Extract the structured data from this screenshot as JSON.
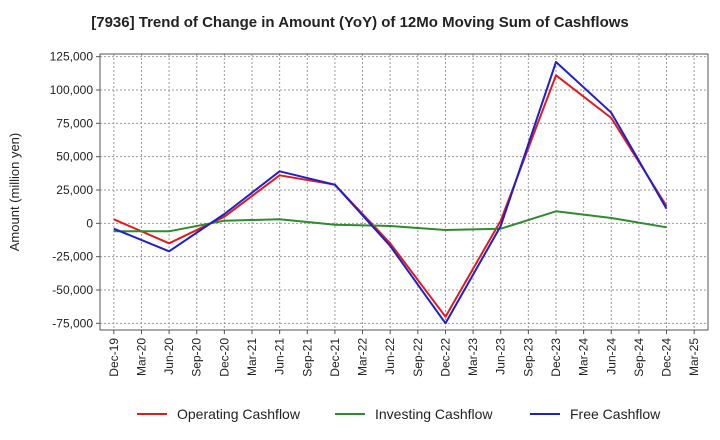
{
  "chart_data": {
    "type": "line",
    "title": "[7936]  Trend of Change in Amount (YoY) of 12Mo Moving Sum of Cashflows",
    "xlabel": "",
    "ylabel": "Amount (million yen)",
    "ylim": [
      -80000,
      127000
    ],
    "yticks": [
      125000,
      100000,
      75000,
      50000,
      25000,
      0,
      -25000,
      -50000,
      -75000
    ],
    "ytick_labels": [
      "125,000",
      "100,000",
      "75,000",
      "50,000",
      "25,000",
      "0",
      "-25,000",
      "-50,000",
      "-75,000"
    ],
    "categories": [
      "Dec-19",
      "Mar-20",
      "Jun-20",
      "Sep-20",
      "Dec-20",
      "Mar-21",
      "Jun-21",
      "Sep-21",
      "Dec-21",
      "Mar-22",
      "Jun-22",
      "Sep-22",
      "Dec-22",
      "Mar-23",
      "Jun-23",
      "Sep-23",
      "Dec-23",
      "Mar-24",
      "Jun-24",
      "Sep-24",
      "Dec-24",
      "Mar-25"
    ],
    "grid": true,
    "legend_position": "bottom",
    "series": [
      {
        "name": "Operating Cashflow",
        "color": "#e31a1c",
        "values": [
          3000,
          null,
          -15000,
          null,
          5000,
          null,
          36000,
          null,
          29000,
          null,
          -15000,
          null,
          -70000,
          null,
          2000,
          null,
          111000,
          null,
          79000,
          null,
          13000,
          null
        ]
      },
      {
        "name": "Investing Cashflow",
        "color": "#2e8b2e",
        "values": [
          -6000,
          null,
          -6000,
          null,
          2000,
          null,
          3000,
          null,
          -1000,
          null,
          -2000,
          null,
          -5000,
          null,
          -4000,
          null,
          9000,
          null,
          4000,
          null,
          -3000,
          null
        ]
      },
      {
        "name": "Free Cashflow",
        "color": "#1f1fcc",
        "values": [
          -4000,
          null,
          -21000,
          null,
          7000,
          null,
          39000,
          null,
          29000,
          null,
          -17000,
          null,
          -75000,
          null,
          -2000,
          null,
          121000,
          null,
          83000,
          null,
          11000,
          null
        ]
      }
    ]
  }
}
